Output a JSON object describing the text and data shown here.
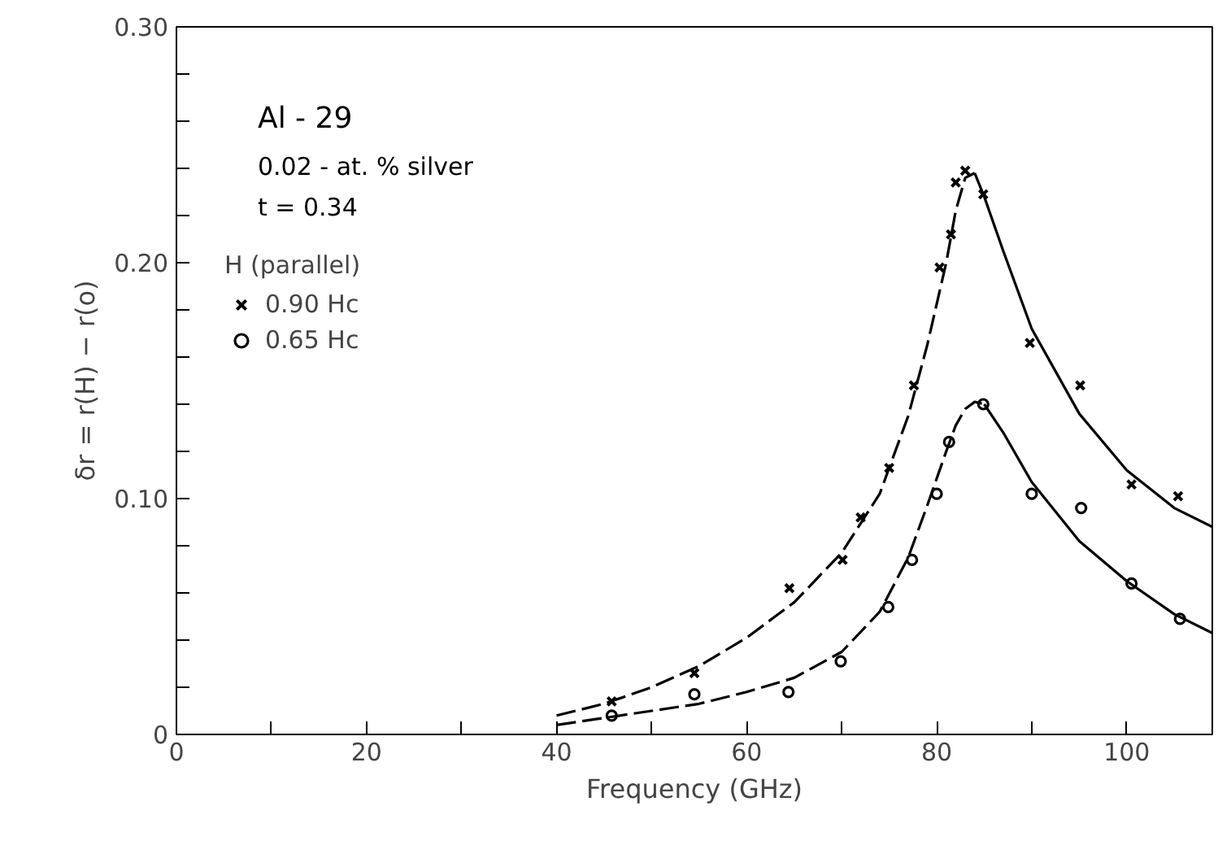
{
  "chart_data": {
    "type": "scatter",
    "xlabel": "Frequency (GHz)",
    "ylabel": "δr = r(H) − r(o)",
    "legend_title": "H (parallel)",
    "annotations": [
      "Al - 29",
      "0.02 - at. % silver",
      "t = 0.34"
    ],
    "xlim": [
      0,
      109
    ],
    "ylim": [
      0,
      0.3
    ],
    "xticks": [
      0,
      {
        "value": 10,
        "label": null
      },
      20,
      {
        "value": 30,
        "label": null
      },
      40,
      {
        "value": 50,
        "label": null
      },
      60,
      {
        "value": 70,
        "label": null
      },
      80,
      {
        "value": 90,
        "label": null
      },
      100
    ],
    "yticks": [
      0,
      {
        "value": 0.02,
        "label": null
      },
      {
        "value": 0.04,
        "label": null
      },
      {
        "value": 0.06,
        "label": null
      },
      {
        "value": 0.08,
        "label": null
      },
      {
        "value": 0.1,
        "label": "0.10"
      },
      {
        "value": 0.12,
        "label": null
      },
      {
        "value": 0.14,
        "label": null
      },
      {
        "value": 0.16,
        "label": null
      },
      {
        "value": 0.18,
        "label": null
      },
      {
        "value": 0.2,
        "label": "0.20"
      },
      {
        "value": 0.22,
        "label": null
      },
      {
        "value": 0.24,
        "label": null
      },
      {
        "value": 0.26,
        "label": null
      },
      {
        "value": 0.28,
        "label": null
      },
      {
        "value": 0.3,
        "label": "0.30"
      }
    ],
    "grid": false,
    "legend": "top left",
    "series": [
      {
        "name": "0.90 Hc",
        "marker": "cross",
        "color": "#000000",
        "x": [
          45.8,
          54.5,
          64.5,
          70.1,
          72.0,
          75.0,
          77.6,
          80.3,
          81.5,
          82.0,
          83.0,
          84.9,
          89.8,
          95.1,
          100.5,
          105.4
        ],
        "values": [
          0.014,
          0.026,
          0.062,
          0.074,
          0.092,
          0.113,
          0.148,
          0.198,
          0.212,
          0.234,
          0.239,
          0.229,
          0.166,
          0.148,
          0.106,
          0.101
        ]
      },
      {
        "name": "0.65 Hc",
        "marker": "circle",
        "color": "#000000",
        "x": [
          45.8,
          54.5,
          64.4,
          69.9,
          74.9,
          77.4,
          80.0,
          81.3,
          84.9,
          90.0,
          95.2,
          100.5,
          105.6
        ],
        "values": [
          0.008,
          0.017,
          0.018,
          0.031,
          0.054,
          0.074,
          0.102,
          0.124,
          0.14,
          0.102,
          0.096,
          0.064,
          0.049
        ]
      },
      {
        "type": "line",
        "line_style": "dashed",
        "color": "#000000",
        "x": [
          40,
          45,
          50,
          55,
          60,
          65,
          70,
          74,
          77,
          79,
          81,
          82,
          83,
          84
        ],
        "values": [
          0.008,
          0.013,
          0.02,
          0.029,
          0.041,
          0.056,
          0.077,
          0.102,
          0.135,
          0.165,
          0.2,
          0.222,
          0.236,
          0.238
        ]
      },
      {
        "type": "line",
        "line_style": "solid",
        "color": "#000000",
        "x": [
          84,
          85,
          87,
          90,
          95,
          100,
          105,
          109
        ],
        "values": [
          0.238,
          0.228,
          0.205,
          0.172,
          0.136,
          0.112,
          0.096,
          0.088
        ]
      },
      {
        "type": "line",
        "line_style": "dashed",
        "color": "#000000",
        "x": [
          40,
          45,
          50,
          55,
          60,
          65,
          70,
          74,
          77,
          79,
          81,
          82,
          83,
          84,
          85
        ],
        "values": [
          0.004,
          0.007,
          0.01,
          0.013,
          0.018,
          0.024,
          0.035,
          0.052,
          0.075,
          0.097,
          0.12,
          0.131,
          0.138,
          0.141,
          0.14
        ]
      },
      {
        "type": "line",
        "line_style": "solid",
        "color": "#000000",
        "x": [
          85,
          87,
          90,
          95,
          100,
          105,
          109
        ],
        "values": [
          0.14,
          0.128,
          0.107,
          0.082,
          0.065,
          0.051,
          0.043
        ]
      }
    ]
  }
}
